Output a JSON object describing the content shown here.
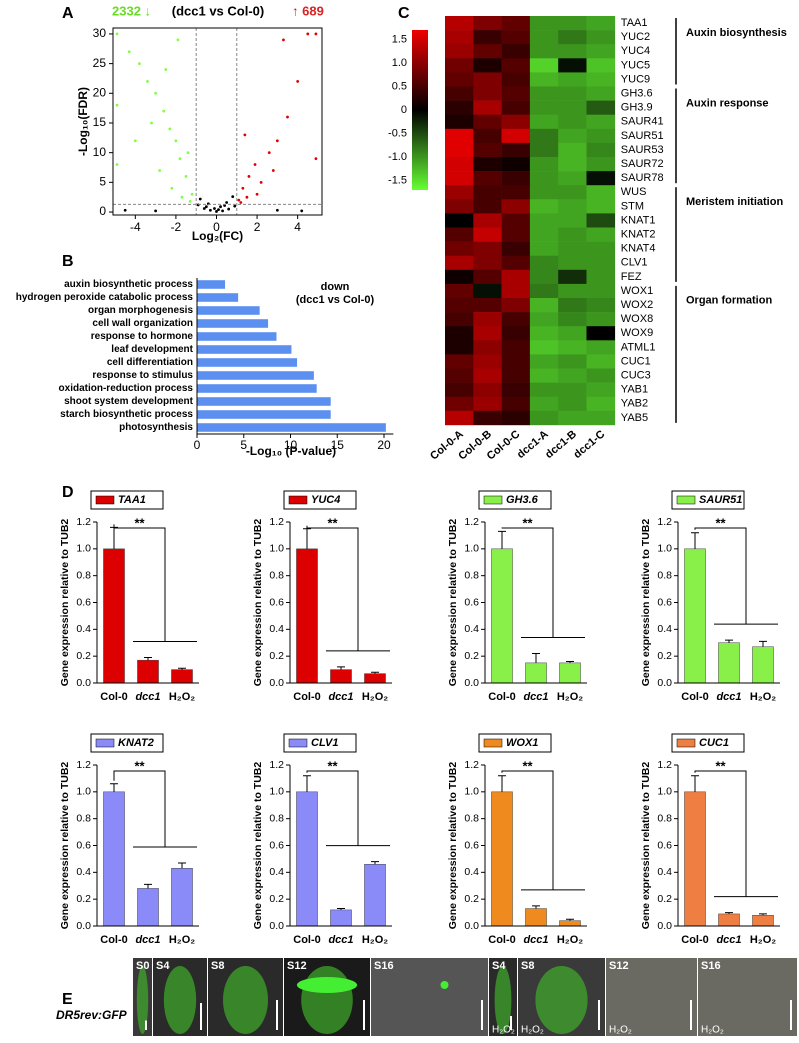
{
  "chart_data": [
    {
      "type": "scatter",
      "panel": "A",
      "title_left": "2332 ↓",
      "title": "(dcc1 vs Col-0)",
      "title_right": "↑ 689",
      "xlabel": "Log₂(FC)",
      "ylabel": "-Log₁₀(FDR)",
      "xlim": [
        -5.1,
        5.2
      ],
      "ylim": [
        -0.5,
        31
      ],
      "xticks": [
        -4,
        -2,
        0,
        2,
        4
      ],
      "yticks": [
        0,
        5,
        10,
        15,
        20,
        25,
        30
      ],
      "vlines": [
        -1,
        1
      ],
      "hline": 1.3,
      "series": [
        {
          "color": "#80ff40",
          "x": [
            -1.2,
            -1.5,
            -1.8,
            -2.0,
            -2.3,
            -2.6,
            -3.0,
            -3.4,
            -3.8,
            -4.3,
            -4.9,
            -4.9,
            -4.9,
            -1.3,
            -1.7,
            -2.2,
            -2.8,
            -1.4,
            -3.2,
            -2.5,
            -1.9,
            -4.0
          ],
          "values": [
            3,
            6,
            9,
            12,
            14,
            17,
            20,
            22,
            25,
            27,
            30,
            18,
            8,
            1.8,
            2.5,
            4,
            7,
            10,
            15,
            24,
            29,
            12
          ]
        },
        {
          "color": "#e00000",
          "x": [
            1.1,
            1.3,
            1.6,
            1.9,
            2.2,
            2.6,
            3.0,
            3.5,
            4.0,
            4.5,
            1.2,
            1.5,
            2.0,
            2.8,
            3.3,
            4.9,
            4.9,
            1.4
          ],
          "values": [
            2,
            4,
            6,
            8,
            5,
            10,
            12,
            16,
            22,
            30,
            1.6,
            2.5,
            3,
            7,
            29,
            9,
            30,
            13
          ]
        },
        {
          "color": "#000000",
          "x": [
            -0.9,
            -0.6,
            -0.3,
            0,
            0.3,
            0.6,
            0.9,
            -0.8,
            -0.4,
            0.2,
            0.5,
            0.8,
            -0.1,
            0.1,
            -0.5,
            0.4,
            -4.5,
            -3,
            3,
            4.2
          ],
          "values": [
            1.2,
            0.6,
            0.3,
            0.1,
            0.2,
            0.5,
            1.0,
            2.2,
            1.4,
            0.9,
            1.6,
            2.6,
            0.6,
            0.4,
            0.9,
            1.1,
            0.3,
            0.2,
            0.3,
            0.2
          ]
        }
      ]
    },
    {
      "type": "hbar",
      "panel": "B",
      "annotation": "down",
      "annotation2": "(dcc1 vs Col-0)",
      "xlabel": "-Log₁₀ (P-value)",
      "color": "#5b8ff0",
      "categories": [
        "auxin biosynthetic process",
        "hydrogen peroxide catabolic process",
        "organ morphogenesis",
        "cell wall organization",
        "response to hormone",
        "leaf development",
        "cell differentiation",
        "response to stimulus",
        "oxidation-reduction process",
        "shoot system development",
        "starch biosynthetic process",
        "photosynthesis"
      ],
      "values": [
        3.0,
        4.4,
        6.7,
        7.6,
        8.5,
        10.1,
        10.7,
        12.5,
        12.8,
        14.3,
        14.3,
        20.2
      ],
      "xlim": [
        0,
        21
      ],
      "xticks": [
        0,
        5,
        10,
        15,
        20
      ]
    },
    {
      "type": "heatmap",
      "panel": "C",
      "zlim": [
        -1.7,
        1.7
      ],
      "low_color": "#66ff33",
      "mid_color": "#000000",
      "high_color": "#ee0000",
      "zticks": [
        1.5,
        {
          "value": 1,
          "label": "1.0"
        },
        0.5,
        0,
        -0.5,
        {
          "value": -1,
          "label": "-1.0"
        },
        -1.5
      ],
      "columns": [
        "Col-0-A",
        "Col-0-B",
        "Col-0-C",
        "dcc1-A",
        "dcc1-B",
        "dcc1-C"
      ],
      "groups": [
        {
          "label": "Auxin biosynthesis",
          "rows": [
            "TAA1",
            "YUC2",
            "YUC4",
            "YUC5",
            "YUC9"
          ],
          "values": [
            [
              1.3,
              0.9,
              0.7,
              -1.0,
              -1.0,
              -1.1
            ],
            [
              1.2,
              0.4,
              0.6,
              -1.0,
              -0.8,
              -1.0
            ],
            [
              1.1,
              0.7,
              0.4,
              -1.0,
              -1.0,
              -1.1
            ],
            [
              0.8,
              0.2,
              0.6,
              -1.4,
              -0.1,
              -1.3
            ],
            [
              0.7,
              0.9,
              0.5,
              -1.2,
              -1.1,
              -1.2
            ]
          ]
        },
        {
          "label": "Auxin response",
          "rows": [
            "GH3.6",
            "GH3.9",
            "SAUR41",
            "SAUR51",
            "SAUR53",
            "SAUR72",
            "SAUR78"
          ],
          "values": [
            [
              0.5,
              0.9,
              0.6,
              -1.0,
              -1.0,
              -1.1
            ],
            [
              0.3,
              1.2,
              0.5,
              -1.0,
              -1.0,
              -0.6
            ],
            [
              0.2,
              0.7,
              1.0,
              -1.1,
              -1.0,
              -1.1
            ],
            [
              1.6,
              0.5,
              1.5,
              -0.8,
              -1.1,
              -1.0
            ],
            [
              1.6,
              0.6,
              0.4,
              -0.8,
              -1.2,
              -0.9
            ],
            [
              1.5,
              0.2,
              0.1,
              -1.0,
              -1.2,
              -1.0
            ],
            [
              1.5,
              0.6,
              0.4,
              -1.0,
              -1.1,
              -0.1
            ]
          ]
        },
        {
          "label": "Meristem initiation",
          "rows": [
            "WUS",
            "STM",
            "KNAT1",
            "KNAT2",
            "KNAT4",
            "CLV1",
            "FEZ"
          ],
          "values": [
            [
              1.1,
              0.5,
              0.5,
              -1.0,
              -1.0,
              -1.2
            ],
            [
              0.9,
              0.5,
              1.0,
              -1.2,
              -1.1,
              -1.2
            ],
            [
              0.0,
              1.2,
              0.6,
              -1.1,
              -1.1,
              -0.5
            ],
            [
              0.6,
              1.4,
              0.6,
              -1.1,
              -1.0,
              -1.1
            ],
            [
              0.8,
              0.9,
              0.4,
              -1.1,
              -1.0,
              -1.0
            ],
            [
              1.2,
              0.9,
              0.6,
              -0.9,
              -1.0,
              -1.0
            ],
            [
              0.1,
              0.6,
              1.2,
              -0.9,
              -0.3,
              -1.0
            ]
          ]
        },
        {
          "label": "Organ formation",
          "rows": [
            "WOX1",
            "WOX2",
            "WOX8",
            "WOX9",
            "ATML1",
            "CUC1",
            "CUC3",
            "YAB1",
            "YAB2",
            "YAB5"
          ],
          "values": [
            [
              0.7,
              -0.1,
              1.2,
              -0.8,
              -1.0,
              -1.0
            ],
            [
              0.6,
              0.6,
              0.9,
              -1.2,
              -0.8,
              -0.9
            ],
            [
              0.5,
              1.1,
              0.5,
              -1.1,
              -0.9,
              -1.0
            ],
            [
              0.2,
              1.2,
              0.4,
              -1.2,
              -1.1,
              0.0
            ],
            [
              0.2,
              1.0,
              0.5,
              -1.3,
              -1.2,
              -1.1
            ],
            [
              0.7,
              1.1,
              0.5,
              -1.1,
              -1.0,
              -1.2
            ],
            [
              0.6,
              1.2,
              0.5,
              -1.2,
              -1.1,
              -1.0
            ],
            [
              0.5,
              1.0,
              0.4,
              -1.0,
              -1.0,
              -1.1
            ],
            [
              0.8,
              1.1,
              0.5,
              -1.1,
              -1.0,
              -1.2
            ],
            [
              1.3,
              0.4,
              0.3,
              -1.0,
              -1.1,
              -1.1
            ]
          ]
        }
      ]
    },
    {
      "type": "bar",
      "panel": "D",
      "gene": "TAA1",
      "color": "#dd0000",
      "ylabel": "Gene expression relative to TUB2",
      "annotation": "**",
      "categories": [
        "Col-0",
        "dcc1",
        "H₂O₂"
      ],
      "values": [
        1.0,
        0.17,
        0.1
      ],
      "errors": [
        0.16,
        0.02,
        0.01
      ],
      "ylim": [
        0,
        1.2
      ],
      "yticks": [
        {
          "value": 0,
          "label": "0.0"
        },
        0.2,
        0.4,
        0.6,
        0.8,
        {
          "value": 1,
          "label": "1.0"
        },
        1.2
      ]
    },
    {
      "type": "bar",
      "gene": "YUC4",
      "color": "#dd0000",
      "ylabel": "Gene expression relative to TUB2",
      "annotation": "**",
      "categories": [
        "Col-0",
        "dcc1",
        "H₂O₂"
      ],
      "values": [
        1.0,
        0.1,
        0.07
      ],
      "errors": [
        0.15,
        0.02,
        0.01
      ],
      "ylim": [
        0,
        1.2
      ],
      "yticks": [
        {
          "value": 0,
          "label": "0.0"
        },
        0.2,
        0.4,
        0.6,
        0.8,
        {
          "value": 1,
          "label": "1.0"
        },
        1.2
      ]
    },
    {
      "type": "bar",
      "gene": "GH3.6",
      "color": "#88f048",
      "ylabel": "Gene expression relative to TUB2",
      "annotation": "**",
      "categories": [
        "Col-0",
        "dcc1",
        "H₂O₂"
      ],
      "values": [
        1.0,
        0.15,
        0.15
      ],
      "errors": [
        0.13,
        0.07,
        0.01
      ],
      "ylim": [
        0,
        1.2
      ],
      "yticks": [
        {
          "value": 0,
          "label": "0.0"
        },
        0.2,
        0.4,
        0.6,
        0.8,
        {
          "value": 1,
          "label": "1.0"
        },
        1.2
      ]
    },
    {
      "type": "bar",
      "gene": "SAUR51",
      "color": "#88f048",
      "ylabel": "Gene expression relative to TUB2",
      "annotation": "**",
      "categories": [
        "Col-0",
        "dcc1",
        "H₂O₂"
      ],
      "values": [
        1.0,
        0.3,
        0.27
      ],
      "errors": [
        0.12,
        0.02,
        0.04
      ],
      "ylim": [
        0,
        1.2
      ],
      "yticks": [
        {
          "value": 0,
          "label": "0.0"
        },
        0.2,
        0.4,
        0.6,
        0.8,
        {
          "value": 1,
          "label": "1.0"
        },
        1.2
      ]
    },
    {
      "type": "bar",
      "gene": "KNAT2",
      "color": "#8a8af8",
      "ylabel": "Gene expression relative to TUB2",
      "annotation": "**",
      "categories": [
        "Col-0",
        "dcc1",
        "H₂O₂"
      ],
      "values": [
        1.0,
        0.28,
        0.43
      ],
      "errors": [
        0.06,
        0.03,
        0.04
      ],
      "ylim": [
        0,
        1.2
      ],
      "yticks": [
        {
          "value": 0,
          "label": "0.0"
        },
        0.2,
        0.4,
        0.6,
        0.8,
        {
          "value": 1,
          "label": "1.0"
        },
        1.2
      ]
    },
    {
      "type": "bar",
      "gene": "CLV1",
      "color": "#8a8af8",
      "ylabel": "Gene expression relative to TUB2",
      "annotation": "**",
      "categories": [
        "Col-0",
        "dcc1",
        "H₂O₂"
      ],
      "values": [
        1.0,
        0.12,
        0.46
      ],
      "errors": [
        0.12,
        0.01,
        0.02
      ],
      "ylim": [
        0,
        1.2
      ],
      "yticks": [
        {
          "value": 0,
          "label": "0.0"
        },
        0.2,
        0.4,
        0.6,
        0.8,
        {
          "value": 1,
          "label": "1.0"
        },
        1.2
      ]
    },
    {
      "type": "bar",
      "gene": "WOX1",
      "color": "#ef8a1e",
      "ylabel": "Gene expression relative to TUB2",
      "annotation": "**",
      "categories": [
        "Col-0",
        "dcc1",
        "H₂O₂"
      ],
      "values": [
        1.0,
        0.13,
        0.04
      ],
      "errors": [
        0.12,
        0.02,
        0.01
      ],
      "ylim": [
        0,
        1.2
      ],
      "yticks": [
        {
          "value": 0,
          "label": "0.0"
        },
        0.2,
        0.4,
        0.6,
        0.8,
        {
          "value": 1,
          "label": "1.0"
        },
        1.2
      ]
    },
    {
      "type": "bar",
      "gene": "CUC1",
      "color": "#ee7e42",
      "ylabel": "Gene expression relative to TUB2",
      "annotation": "**",
      "categories": [
        "Col-0",
        "dcc1",
        "H₂O₂"
      ],
      "values": [
        1.0,
        0.09,
        0.08
      ],
      "errors": [
        0.12,
        0.01,
        0.01
      ],
      "ylim": [
        0,
        1.2
      ],
      "yticks": [
        {
          "value": 0,
          "label": "0.0"
        },
        0.2,
        0.4,
        0.6,
        0.8,
        {
          "value": 1,
          "label": "1.0"
        },
        1.2
      ]
    }
  ],
  "panel_e": {
    "panel": "E",
    "label": "DR5rev:GFP",
    "frames": [
      {
        "stage": "S0"
      },
      {
        "stage": "S4"
      },
      {
        "stage": "S8"
      },
      {
        "stage": "S12"
      },
      {
        "stage": "S16"
      },
      {
        "stage": "S4",
        "treatment": "H₂O₂"
      },
      {
        "stage": "S8",
        "treatment": "H₂O₂"
      },
      {
        "stage": "S12",
        "treatment": "H₂O₂"
      },
      {
        "stage": "S16",
        "treatment": "H₂O₂"
      }
    ]
  }
}
